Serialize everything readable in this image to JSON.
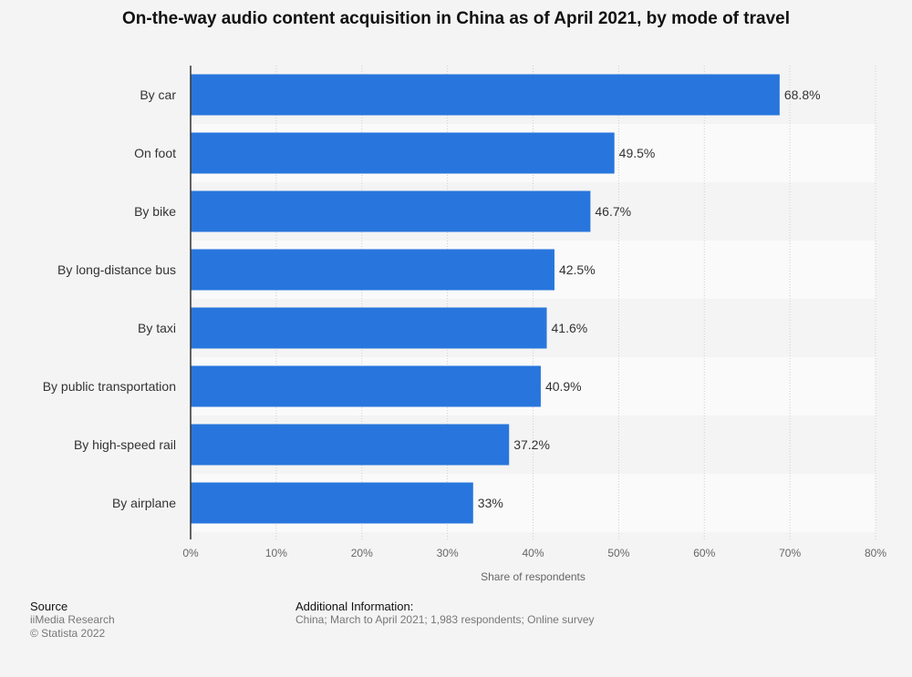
{
  "chart_data": {
    "type": "bar",
    "orientation": "horizontal",
    "title": "On-the-way audio content acquisition in China as of April 2021, by mode of travel",
    "categories": [
      "By car",
      "On foot",
      "By bike",
      "By long-distance bus",
      "By taxi",
      "By public transportation",
      "By high-speed rail",
      "By airplane"
    ],
    "values": [
      68.8,
      49.5,
      46.7,
      42.5,
      41.6,
      40.9,
      37.2,
      33
    ],
    "value_labels": [
      "68.8%",
      "49.5%",
      "46.7%",
      "42.5%",
      "41.6%",
      "40.9%",
      "37.2%",
      "33%"
    ],
    "xlabel": "Share of respondents",
    "ylabel": "",
    "xlim": [
      0,
      80
    ],
    "ticks": [
      0,
      10,
      20,
      30,
      40,
      50,
      60,
      70,
      80
    ],
    "tick_labels": [
      "0%",
      "10%",
      "20%",
      "30%",
      "40%",
      "50%",
      "60%",
      "70%",
      "80%"
    ],
    "grid": true,
    "bar_color": "#2876dd"
  },
  "footer": {
    "source_heading": "Source",
    "source_name": "iiMedia Research",
    "copyright": "© Statista 2022",
    "info_heading": "Additional Information:",
    "info_text": "China; March to April 2021; 1,983 respondents; Online survey"
  }
}
